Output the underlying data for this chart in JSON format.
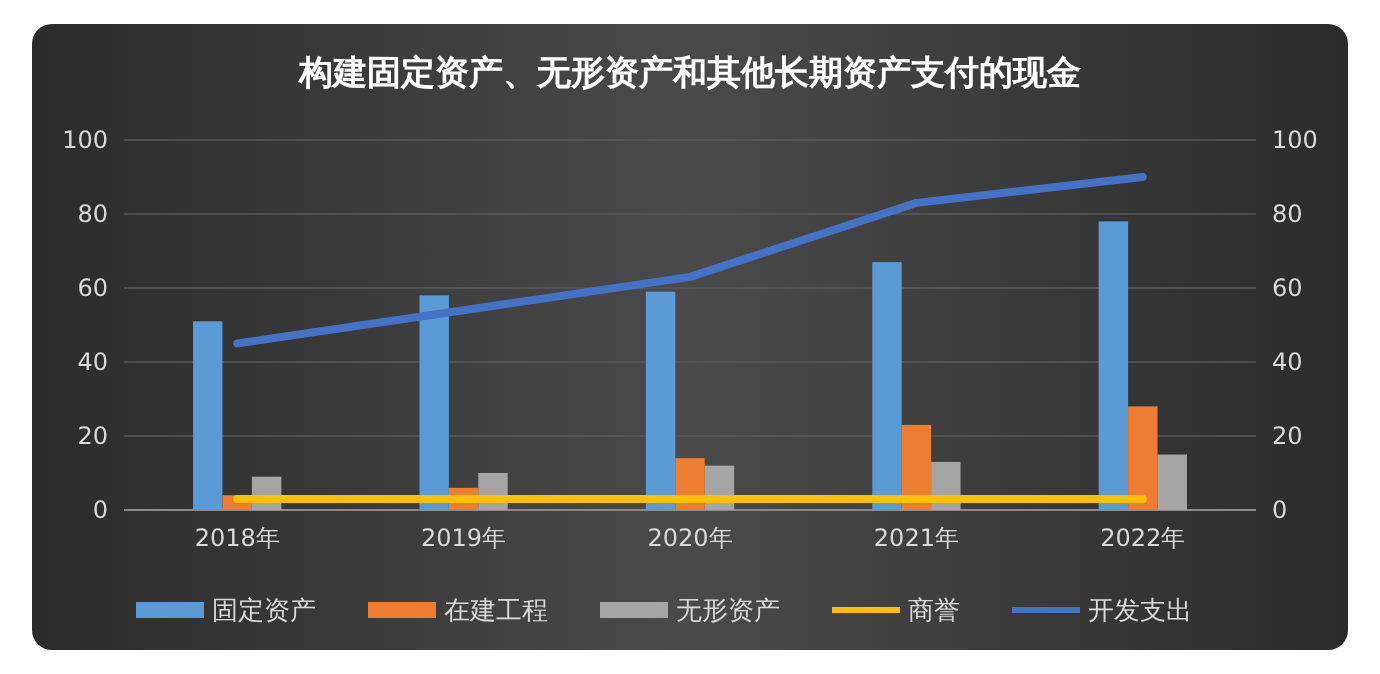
{
  "chart_data": {
    "type": "bar",
    "title": "构建固定资产、无形资产和其他长期资产支付的现金",
    "categories": [
      "2018年",
      "2019年",
      "2020年",
      "2021年",
      "2022年"
    ],
    "series": [
      {
        "name": "固定资产",
        "color": "#5b9bd5",
        "values": [
          51,
          58,
          59,
          67,
          78
        ]
      },
      {
        "name": "在建工程",
        "color": "#ed7d31",
        "values": [
          4,
          6,
          14,
          23,
          28
        ]
      },
      {
        "name": "无形资产",
        "color": "#a5a5a5",
        "values": [
          9,
          10,
          12,
          13,
          15
        ]
      },
      {
        "name": "商誉",
        "type": "line",
        "color": "#ffc000",
        "values": [
          3,
          3,
          3,
          3,
          3
        ]
      },
      {
        "name": "开发支出",
        "type": "line",
        "color": "#4472c4",
        "values": [
          45,
          54,
          63,
          83,
          90
        ]
      }
    ],
    "ylim": [
      0,
      100
    ],
    "yticks": [
      0,
      20,
      40,
      60,
      80,
      100
    ],
    "y2lim": [
      0,
      100
    ],
    "y2ticks": [
      0,
      20,
      40,
      60,
      80,
      100
    ],
    "grid": "y",
    "legend": "bottom",
    "marker": "none",
    "line_style": "solid"
  }
}
